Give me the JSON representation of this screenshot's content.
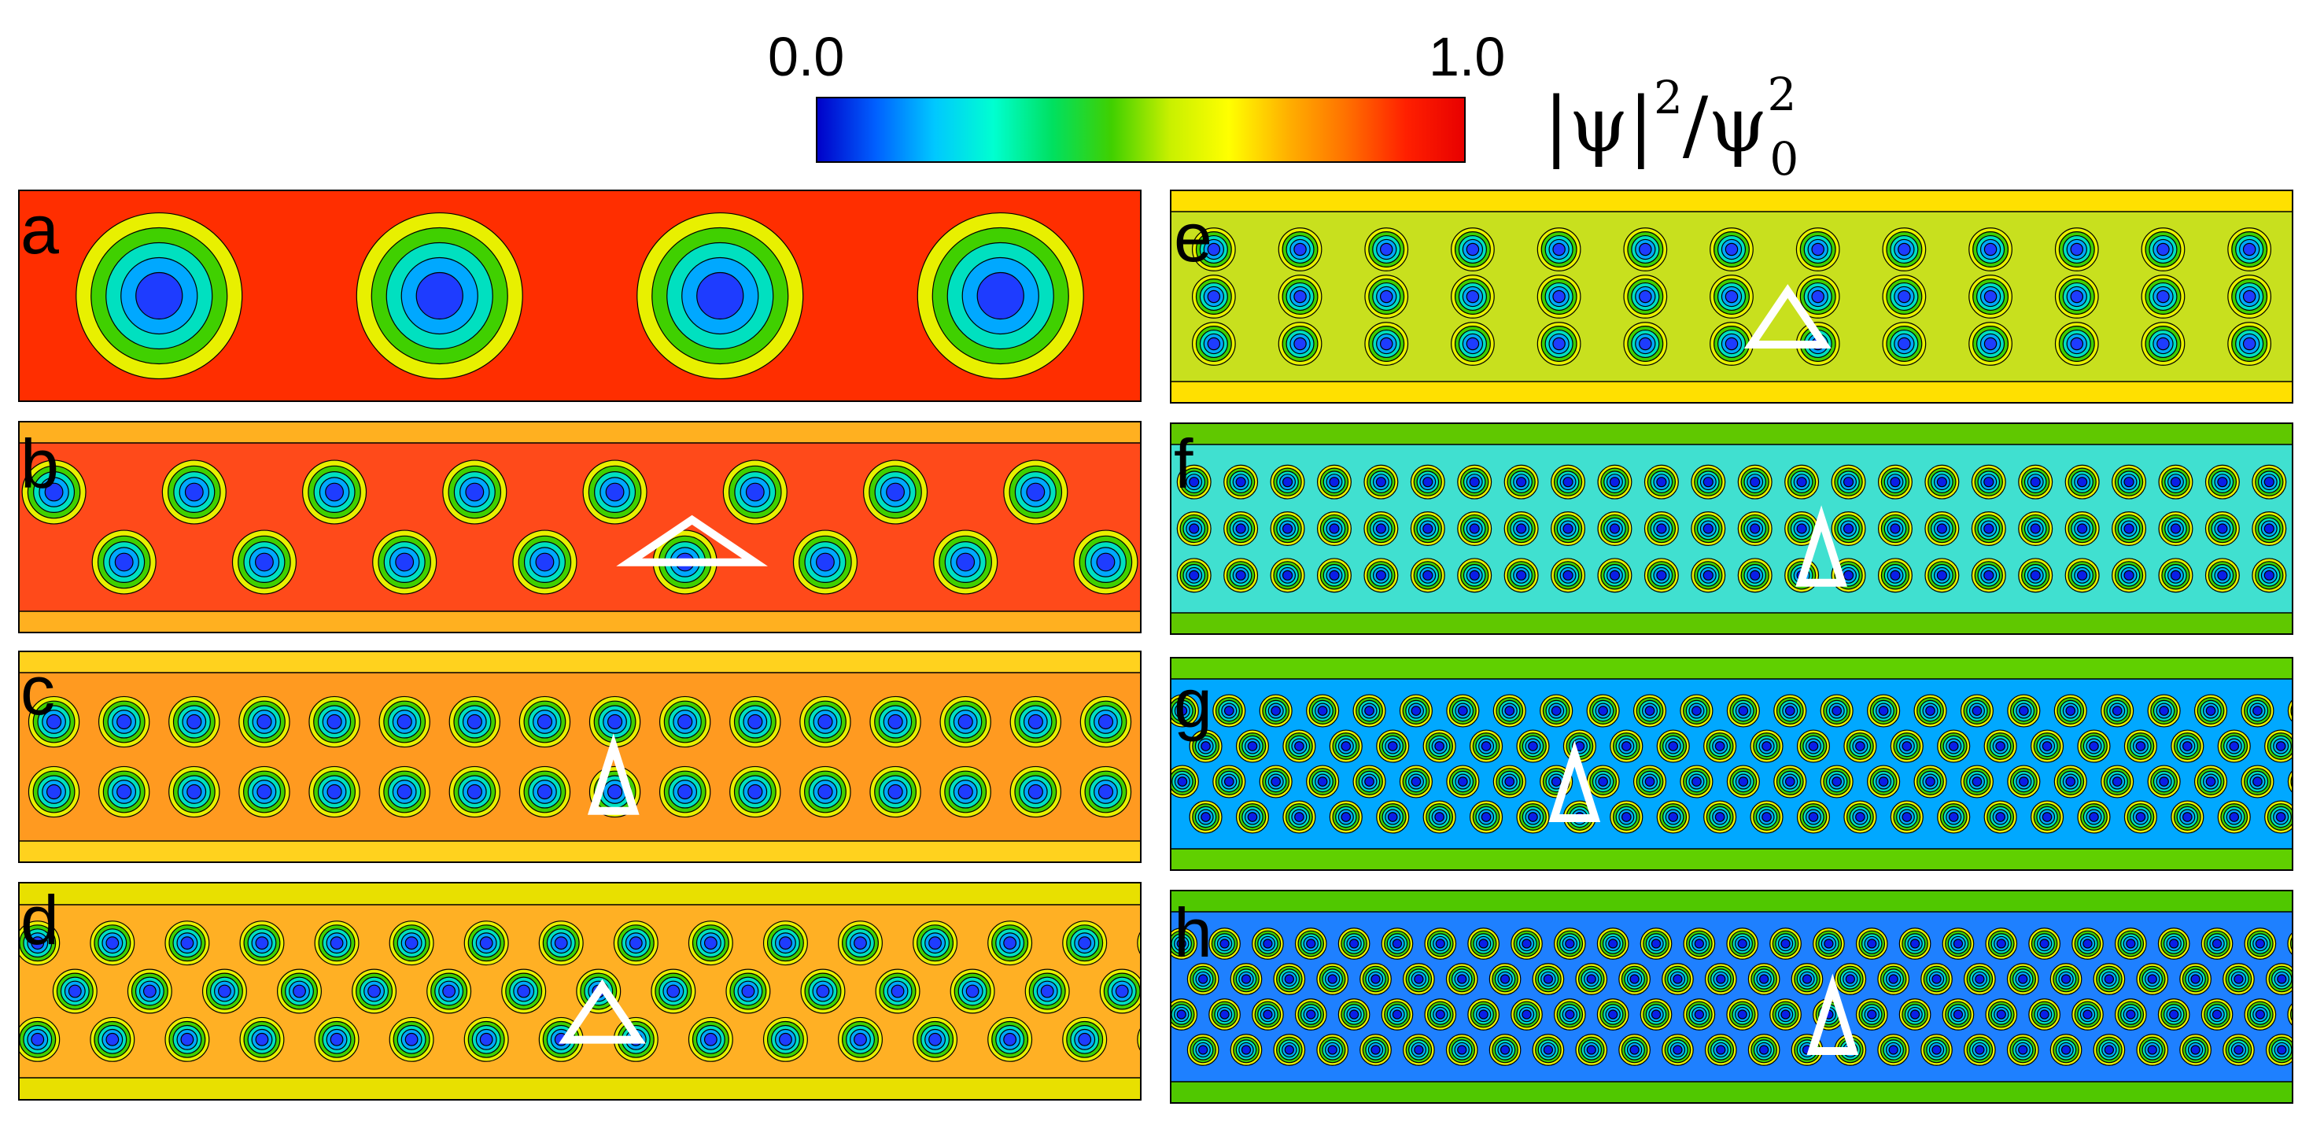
{
  "colorbar": {
    "min_label": "0.0",
    "max_label": "1.0",
    "quantity_main": "|ψ|",
    "quantity_exp": "2",
    "quantity_slash": "/ψ",
    "quantity_sup": "2",
    "quantity_sub": "0",
    "stops": [
      "#0000c8",
      "#0060ff",
      "#00c8ff",
      "#00ffd0",
      "#00e060",
      "#40d000",
      "#c8f000",
      "#ffff00",
      "#ffb000",
      "#ff7000",
      "#ff2000",
      "#e80000"
    ]
  },
  "panels": [
    {
      "letter": "a",
      "background": "#ff2e00",
      "edge": "#ff5a1e",
      "vortex_rows": 1,
      "vortices_per_row": 4,
      "stagger": false,
      "marker": "none",
      "core_color": "#1e3cff"
    },
    {
      "letter": "b",
      "background": "#ff4a1a",
      "edge": "#ffb020",
      "vortex_rows": 2,
      "vortices_per_row": 8,
      "stagger": true,
      "marker": "wide-triangle",
      "core_color": "#1e3cff"
    },
    {
      "letter": "c",
      "background": "#ff9a20",
      "edge": "#ffd21e",
      "vortex_rows": 2,
      "vortices_per_row": 16,
      "stagger": false,
      "marker": "tall-triangle",
      "core_color": "#1e3cff"
    },
    {
      "letter": "d",
      "background": "#ffb024",
      "edge": "#e8e000",
      "vortex_rows": 3,
      "vortices_per_row": 15,
      "stagger": true,
      "marker": "equilateral-triangle",
      "core_color": "#1e3cff"
    },
    {
      "letter": "e",
      "background": "#c8e01e",
      "edge": "#ffe000",
      "vortex_rows": 3,
      "vortices_per_row": 13,
      "stagger": false,
      "marker": "equilateral-triangle",
      "core_color": "#1e3cff"
    },
    {
      "letter": "f",
      "background": "#40e0d0",
      "edge": "#60c800",
      "vortex_rows": 3,
      "vortices_per_row": 24,
      "stagger": false,
      "marker": "tall-triangle",
      "core_color": "#0a1ee8"
    },
    {
      "letter": "g",
      "background": "#00a8ff",
      "edge": "#60d000",
      "vortex_rows": 4,
      "vortices_per_row": 24,
      "stagger": true,
      "marker": "tall-triangle",
      "core_color": "#0a1ee8"
    },
    {
      "letter": "h",
      "background": "#1e80ff",
      "edge": "#50c800",
      "vortex_rows": 4,
      "vortices_per_row": 26,
      "stagger": true,
      "marker": "tall-triangle",
      "core_color": "#0a1ee8"
    }
  ]
}
